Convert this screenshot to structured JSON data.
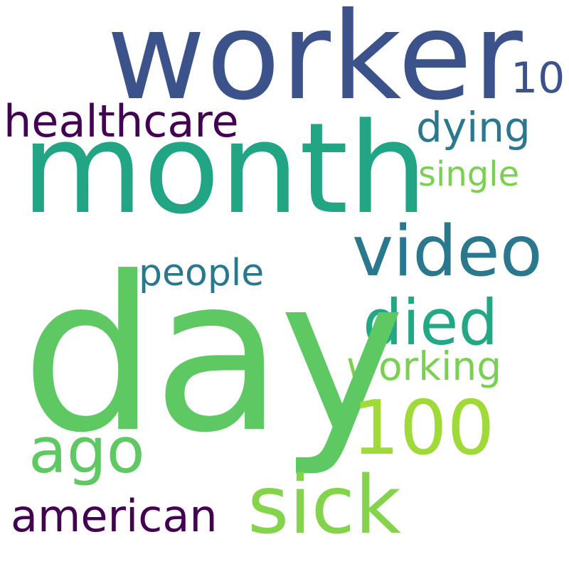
{
  "words": {
    "worker": {
      "text": "worker",
      "color": "#3b528b"
    },
    "month": {
      "text": "month",
      "color": "#21a585"
    },
    "day": {
      "text": "day",
      "color": "#5ec962"
    },
    "healthcare": {
      "text": "healthcare",
      "color": "#440154"
    },
    "ten": {
      "text": "10",
      "color": "#3b528b"
    },
    "dying": {
      "text": "dying",
      "color": "#2a788e"
    },
    "single": {
      "text": "single",
      "color": "#7ad151"
    },
    "video": {
      "text": "video",
      "color": "#2a788e"
    },
    "people": {
      "text": "people",
      "color": "#2a788e"
    },
    "died": {
      "text": "died",
      "color": "#22a884"
    },
    "working": {
      "text": "working",
      "color": "#7ad151"
    },
    "hundred": {
      "text": "100",
      "color": "#a0da39"
    },
    "ago": {
      "text": "ago",
      "color": "#5ec962"
    },
    "sick": {
      "text": "sick",
      "color": "#84d44b"
    },
    "american": {
      "text": "american",
      "color": "#440154"
    }
  }
}
